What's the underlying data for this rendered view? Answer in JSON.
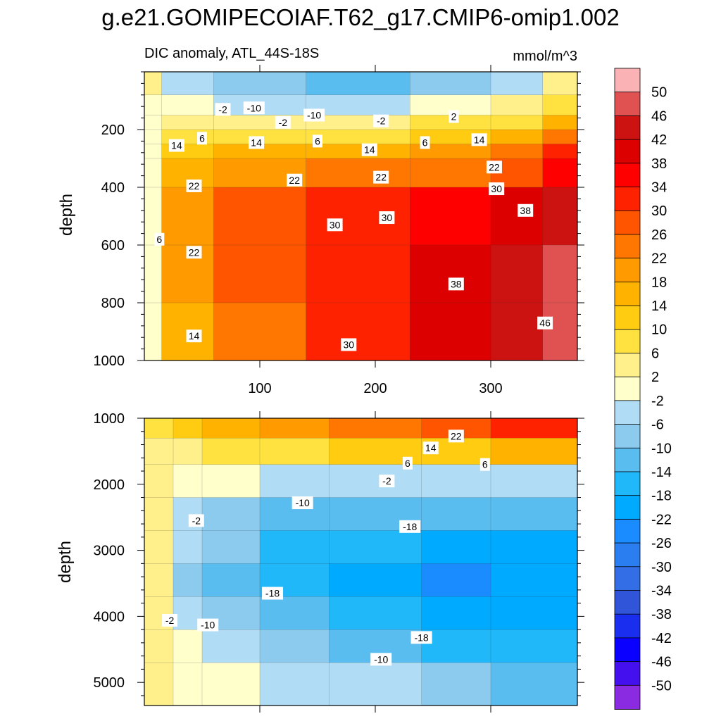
{
  "chart_data": [
    {
      "type": "heatmap",
      "panel": "upper",
      "title": "g.e21.GOMIPECOIAF.T62_g17.CMIP6-omip1.002",
      "subtitle_left": "DIC anomaly, ATL_44S-18S",
      "subtitle_right": "mmol/m^3",
      "xlabel": "",
      "ylabel": "depth",
      "xlim": [
        0,
        375
      ],
      "ylim": [
        1000,
        0
      ],
      "xticks": [
        100,
        200,
        300
      ],
      "xtick_labels": [
        "100",
        "200",
        "300"
      ],
      "yticks": [
        200,
        400,
        600,
        800,
        1000
      ],
      "ytick_labels": [
        "200",
        "400",
        "600",
        "800",
        "1000"
      ],
      "x_edges": [
        0,
        15,
        60,
        140,
        230,
        300,
        345,
        375
      ],
      "y_edges": [
        0,
        80,
        150,
        200,
        250,
        300,
        400,
        600,
        800,
        1000
      ],
      "values": [
        [
          2,
          -6,
          -10,
          -14,
          -10,
          -6,
          2
        ],
        [
          -2,
          -2,
          -6,
          -6,
          -2,
          2,
          6
        ],
        [
          -2,
          2,
          2,
          2,
          6,
          6,
          14
        ],
        [
          -2,
          6,
          6,
          6,
          10,
          14,
          22
        ],
        [
          -2,
          10,
          14,
          14,
          18,
          22,
          30
        ],
        [
          -2,
          14,
          18,
          22,
          22,
          26,
          34
        ],
        [
          -2,
          18,
          26,
          30,
          34,
          38,
          42
        ],
        [
          -2,
          18,
          26,
          30,
          38,
          42,
          46
        ],
        [
          -2,
          14,
          22,
          30,
          38,
          42,
          46
        ]
      ],
      "contour_labels": [
        {
          "text": "-2",
          "x": 68,
          "y": 130
        },
        {
          "text": "-10",
          "x": 95,
          "y": 125
        },
        {
          "text": "-10",
          "x": 147,
          "y": 150
        },
        {
          "text": "-2",
          "x": 120,
          "y": 175
        },
        {
          "text": "-2",
          "x": 205,
          "y": 170
        },
        {
          "text": "2",
          "x": 268,
          "y": 155
        },
        {
          "text": "6",
          "x": 50,
          "y": 230
        },
        {
          "text": "14",
          "x": 28,
          "y": 255
        },
        {
          "text": "14",
          "x": 97,
          "y": 245
        },
        {
          "text": "6",
          "x": 150,
          "y": 240
        },
        {
          "text": "6",
          "x": 243,
          "y": 245
        },
        {
          "text": "14",
          "x": 290,
          "y": 235
        },
        {
          "text": "14",
          "x": 195,
          "y": 270
        },
        {
          "text": "22",
          "x": 43,
          "y": 395
        },
        {
          "text": "22",
          "x": 130,
          "y": 375
        },
        {
          "text": "22",
          "x": 205,
          "y": 365
        },
        {
          "text": "22",
          "x": 303,
          "y": 330
        },
        {
          "text": "30",
          "x": 305,
          "y": 405
        },
        {
          "text": "38",
          "x": 330,
          "y": 480
        },
        {
          "text": "30",
          "x": 165,
          "y": 530
        },
        {
          "text": "30",
          "x": 210,
          "y": 505
        },
        {
          "text": "6",
          "x": 13,
          "y": 580
        },
        {
          "text": "22",
          "x": 43,
          "y": 625
        },
        {
          "text": "38",
          "x": 270,
          "y": 735
        },
        {
          "text": "46",
          "x": 347,
          "y": 870
        },
        {
          "text": "14",
          "x": 43,
          "y": 915
        },
        {
          "text": "30",
          "x": 177,
          "y": 945
        }
      ]
    },
    {
      "type": "heatmap",
      "panel": "lower",
      "xlabel": "",
      "ylabel": "depth",
      "xlim": [
        0,
        375
      ],
      "ylim": [
        5350,
        1000
      ],
      "xticks": [
        100,
        200,
        300
      ],
      "yticks": [
        1000,
        2000,
        3000,
        4000,
        5000
      ],
      "ytick_labels": [
        "1000",
        "2000",
        "3000",
        "4000",
        "5000"
      ],
      "x_edges": [
        0,
        25,
        50,
        100,
        160,
        240,
        300,
        375
      ],
      "y_edges": [
        1000,
        1300,
        1700,
        2200,
        2700,
        3200,
        3700,
        4200,
        4700,
        5350
      ],
      "values": [
        [
          6,
          10,
          14,
          18,
          22,
          26,
          30
        ],
        [
          2,
          2,
          6,
          6,
          10,
          10,
          14
        ],
        [
          2,
          -2,
          -2,
          -6,
          -6,
          -6,
          -6
        ],
        [
          2,
          -6,
          -10,
          -14,
          -14,
          -14,
          -14
        ],
        [
          2,
          -6,
          -10,
          -18,
          -18,
          -22,
          -22
        ],
        [
          2,
          -10,
          -14,
          -18,
          -22,
          -26,
          -22
        ],
        [
          2,
          -6,
          -10,
          -14,
          -18,
          -22,
          -22
        ],
        [
          2,
          -2,
          -6,
          -10,
          -14,
          -18,
          -18
        ],
        [
          2,
          -2,
          -2,
          -6,
          -6,
          -10,
          -14
        ]
      ],
      "contour_labels": [
        {
          "text": "22",
          "x": 270,
          "y": 1270
        },
        {
          "text": "14",
          "x": 248,
          "y": 1450
        },
        {
          "text": "6",
          "x": 228,
          "y": 1680
        },
        {
          "text": "6",
          "x": 295,
          "y": 1700
        },
        {
          "text": "-2",
          "x": 210,
          "y": 1950
        },
        {
          "text": "-10",
          "x": 137,
          "y": 2280
        },
        {
          "text": "-2",
          "x": 45,
          "y": 2550
        },
        {
          "text": "-18",
          "x": 230,
          "y": 2640
        },
        {
          "text": "-18",
          "x": 111,
          "y": 3650
        },
        {
          "text": "-2",
          "x": 22,
          "y": 4060
        },
        {
          "text": "-10",
          "x": 55,
          "y": 4130
        },
        {
          "text": "-18",
          "x": 240,
          "y": 4320
        },
        {
          "text": "-10",
          "x": 205,
          "y": 4650
        }
      ]
    }
  ],
  "colorbar": {
    "levels": [
      50,
      46,
      42,
      38,
      34,
      30,
      26,
      22,
      18,
      14,
      10,
      6,
      2,
      -2,
      -6,
      -10,
      -14,
      -18,
      -22,
      -26,
      -30,
      -34,
      -38,
      -42,
      -46,
      -50
    ],
    "labels": [
      "50",
      "46",
      "42",
      "38",
      "34",
      "30",
      "26",
      "22",
      "18",
      "14",
      "10",
      "6",
      "2",
      "-2",
      "-6",
      "-10",
      "-14",
      "-18",
      "-22",
      "-26",
      "-30",
      "-34",
      "-38",
      "-42",
      "-46",
      "-50"
    ],
    "colors": [
      "#fbb2b4",
      "#e05252",
      "#cd1212",
      "#dd0000",
      "#ff0000",
      "#ff2200",
      "#ff5500",
      "#ff7700",
      "#ff9a00",
      "#ffb300",
      "#ffcc11",
      "#ffe240",
      "#fff08c",
      "#ffffcc",
      "#b0dcf5",
      "#8ccbee",
      "#5abdf0",
      "#20b8f8",
      "#00aaff",
      "#1a8cff",
      "#2a7ef0",
      "#336ee6",
      "#3055d8",
      "#1a2ef0",
      "#0a00ff",
      "#4411ee",
      "#8a2be2"
    ]
  }
}
